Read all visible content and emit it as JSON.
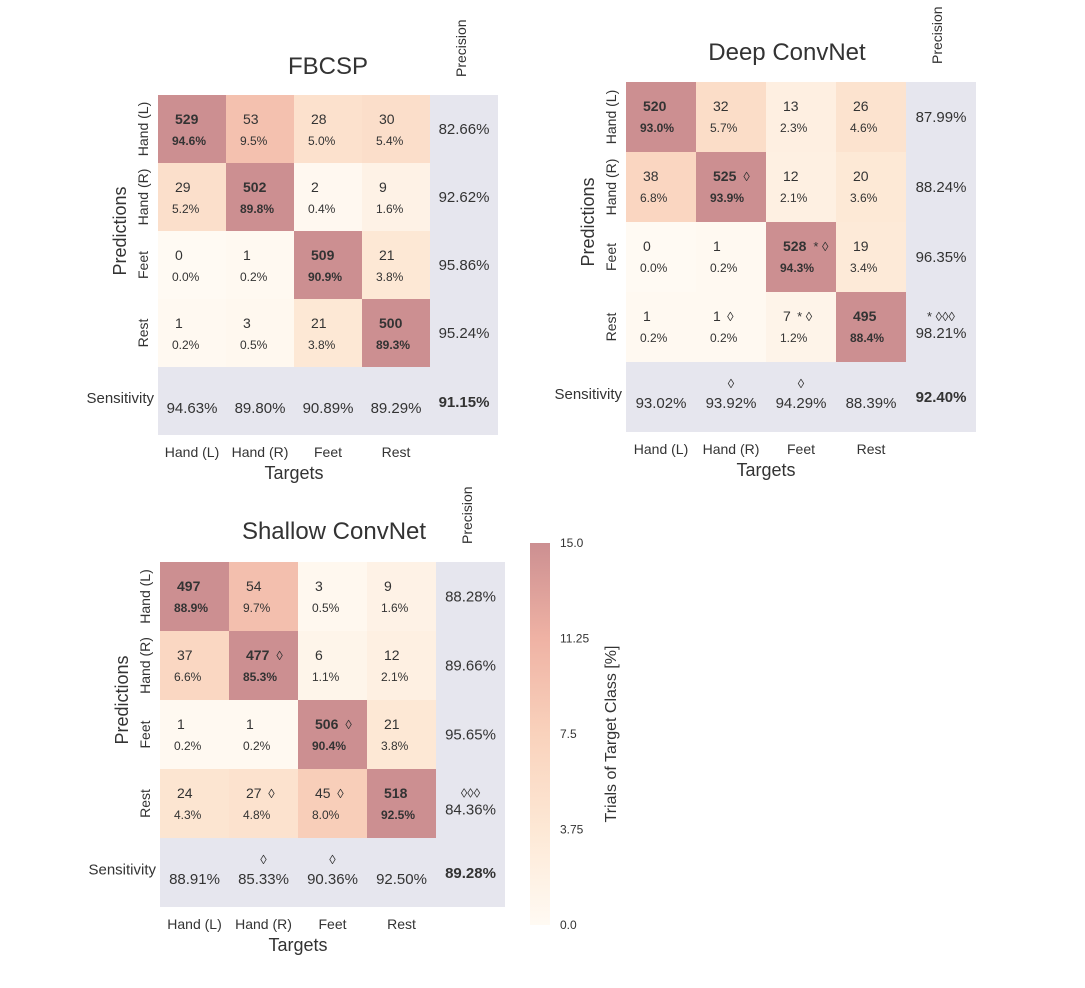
{
  "chart_data": [
    {
      "type": "heatmap",
      "title": "FBCSP",
      "xlabel": "Targets",
      "ylabel": "Predictions",
      "precision_label": "Precision",
      "sensitivity_label": "Sensitivity",
      "categories": [
        "Hand (L)",
        "Hand (R)",
        "Feet",
        "Rest"
      ],
      "counts": [
        [
          529,
          53,
          28,
          30
        ],
        [
          29,
          502,
          2,
          9
        ],
        [
          0,
          1,
          509,
          21
        ],
        [
          1,
          3,
          21,
          500
        ]
      ],
      "percent": [
        [
          "94.6%",
          "9.5%",
          "5.0%",
          "5.4%"
        ],
        [
          "5.2%",
          "89.8%",
          "0.4%",
          "1.6%"
        ],
        [
          "0.0%",
          "0.2%",
          "90.9%",
          "3.8%"
        ],
        [
          "0.2%",
          "0.5%",
          "3.8%",
          "89.3%"
        ]
      ],
      "marks": [
        [
          "",
          "",
          "",
          ""
        ],
        [
          "",
          "",
          "",
          ""
        ],
        [
          "",
          "",
          "",
          ""
        ],
        [
          "",
          "",
          "",
          ""
        ]
      ],
      "precision": [
        "82.66%",
        "92.62%",
        "95.86%",
        "95.24%"
      ],
      "precision_marks": [
        "",
        "",
        "",
        ""
      ],
      "sensitivity": [
        "94.63%",
        "89.80%",
        "90.89%",
        "89.29%"
      ],
      "sensitivity_marks": [
        "",
        "",
        "",
        ""
      ],
      "overall": "91.15%"
    },
    {
      "type": "heatmap",
      "title": "Deep ConvNet",
      "xlabel": "Targets",
      "ylabel": "Predictions",
      "precision_label": "Precision",
      "sensitivity_label": "Sensitivity",
      "categories": [
        "Hand (L)",
        "Hand (R)",
        "Feet",
        "Rest"
      ],
      "counts": [
        [
          520,
          32,
          13,
          26
        ],
        [
          38,
          525,
          12,
          20
        ],
        [
          0,
          1,
          528,
          19
        ],
        [
          1,
          1,
          7,
          495
        ]
      ],
      "percent": [
        [
          "93.0%",
          "5.7%",
          "2.3%",
          "4.6%"
        ],
        [
          "6.8%",
          "93.9%",
          "2.1%",
          "3.6%"
        ],
        [
          "0.0%",
          "0.2%",
          "94.3%",
          "3.4%"
        ],
        [
          "0.2%",
          "0.2%",
          "1.2%",
          "88.4%"
        ]
      ],
      "marks": [
        [
          "",
          "",
          "",
          ""
        ],
        [
          "",
          "◊",
          "",
          ""
        ],
        [
          "",
          "",
          "* ◊",
          ""
        ],
        [
          "",
          "◊",
          "* ◊",
          ""
        ]
      ],
      "precision": [
        "87.99%",
        "88.24%",
        "96.35%",
        "98.21%"
      ],
      "precision_marks": [
        "",
        "",
        "",
        "* ◊◊◊"
      ],
      "sensitivity": [
        "93.02%",
        "93.92%",
        "94.29%",
        "88.39%"
      ],
      "sensitivity_marks": [
        "",
        "◊",
        "◊",
        ""
      ],
      "overall": "92.40%"
    },
    {
      "type": "heatmap",
      "title": "Shallow ConvNet",
      "xlabel": "Targets",
      "ylabel": "Predictions",
      "precision_label": "Precision",
      "sensitivity_label": "Sensitivity",
      "categories": [
        "Hand (L)",
        "Hand (R)",
        "Feet",
        "Rest"
      ],
      "counts": [
        [
          497,
          54,
          3,
          9
        ],
        [
          37,
          477,
          6,
          12
        ],
        [
          1,
          1,
          506,
          21
        ],
        [
          24,
          27,
          45,
          518
        ]
      ],
      "percent": [
        [
          "88.9%",
          "9.7%",
          "0.5%",
          "1.6%"
        ],
        [
          "6.6%",
          "85.3%",
          "1.1%",
          "2.1%"
        ],
        [
          "0.2%",
          "0.2%",
          "90.4%",
          "3.8%"
        ],
        [
          "4.3%",
          "4.8%",
          "8.0%",
          "92.5%"
        ]
      ],
      "marks": [
        [
          "",
          "",
          "",
          ""
        ],
        [
          "",
          "◊",
          "",
          ""
        ],
        [
          "",
          "",
          "◊",
          ""
        ],
        [
          "",
          "◊",
          "◊",
          ""
        ]
      ],
      "precision": [
        "88.28%",
        "89.66%",
        "95.65%",
        "84.36%"
      ],
      "precision_marks": [
        "",
        "",
        "",
        "◊◊◊"
      ],
      "sensitivity": [
        "88.91%",
        "85.33%",
        "90.36%",
        "92.50%"
      ],
      "sensitivity_marks": [
        "",
        "◊",
        "◊",
        ""
      ],
      "overall": "89.28%"
    }
  ],
  "colorbar": {
    "label": "Trials of Target Class [%]",
    "ticks": [
      "15.0",
      "11.25",
      "7.5",
      "3.75",
      "0.0"
    ],
    "min": 0,
    "max": 15,
    "colors": [
      "#fffaf3",
      "#fde8d5",
      "#f9d2bc",
      "#efb2a4",
      "#cc8f91"
    ]
  },
  "colors": {
    "summary_bg": "#e6e6ee",
    "text": "#333333"
  }
}
